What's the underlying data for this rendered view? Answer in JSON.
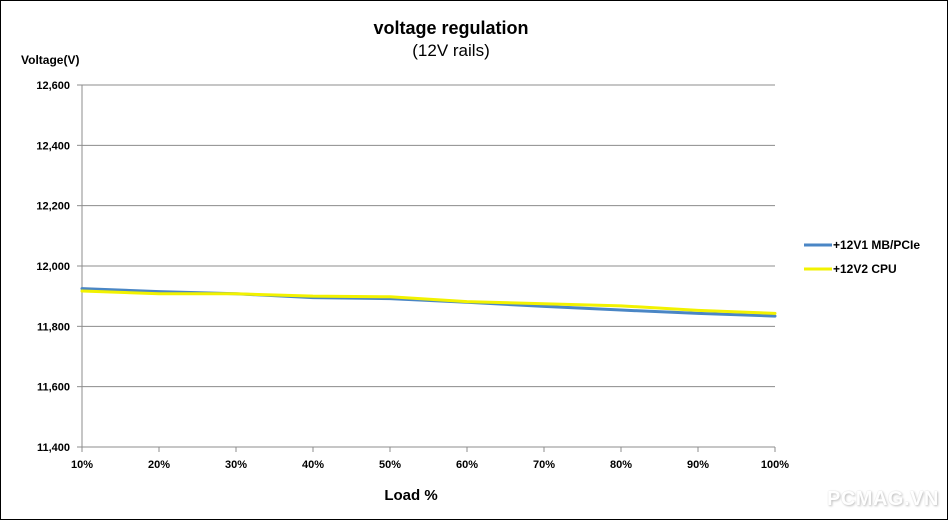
{
  "chart_data": {
    "type": "line",
    "title": "voltage regulation",
    "subtitle": "(12V rails)",
    "ylabel": "Voltage(V)",
    "xlabel": "Load %",
    "categories": [
      "10%",
      "20%",
      "30%",
      "40%",
      "50%",
      "60%",
      "70%",
      "80%",
      "90%",
      "100%"
    ],
    "ylim": [
      11400,
      12600
    ],
    "yticks": [
      11400,
      11600,
      11800,
      12000,
      12200,
      12400,
      12600
    ],
    "ytick_labels": [
      "11,400",
      "11,600",
      "11,800",
      "12,000",
      "12,200",
      "12,400",
      "12,600"
    ],
    "grid": true,
    "legend_position": "right",
    "series": [
      {
        "name": "+12V1 MB/PCIe",
        "color": "#4a86c5",
        "values": [
          11925,
          11915,
          11908,
          11895,
          11892,
          11880,
          11866,
          11854,
          11843,
          11834
        ]
      },
      {
        "name": "+12V2 CPU",
        "color": "#f2f200",
        "values": [
          11917,
          11908,
          11908,
          11900,
          11898,
          11882,
          11875,
          11868,
          11853,
          11843
        ]
      }
    ]
  },
  "watermark": "PCMAG.VN"
}
